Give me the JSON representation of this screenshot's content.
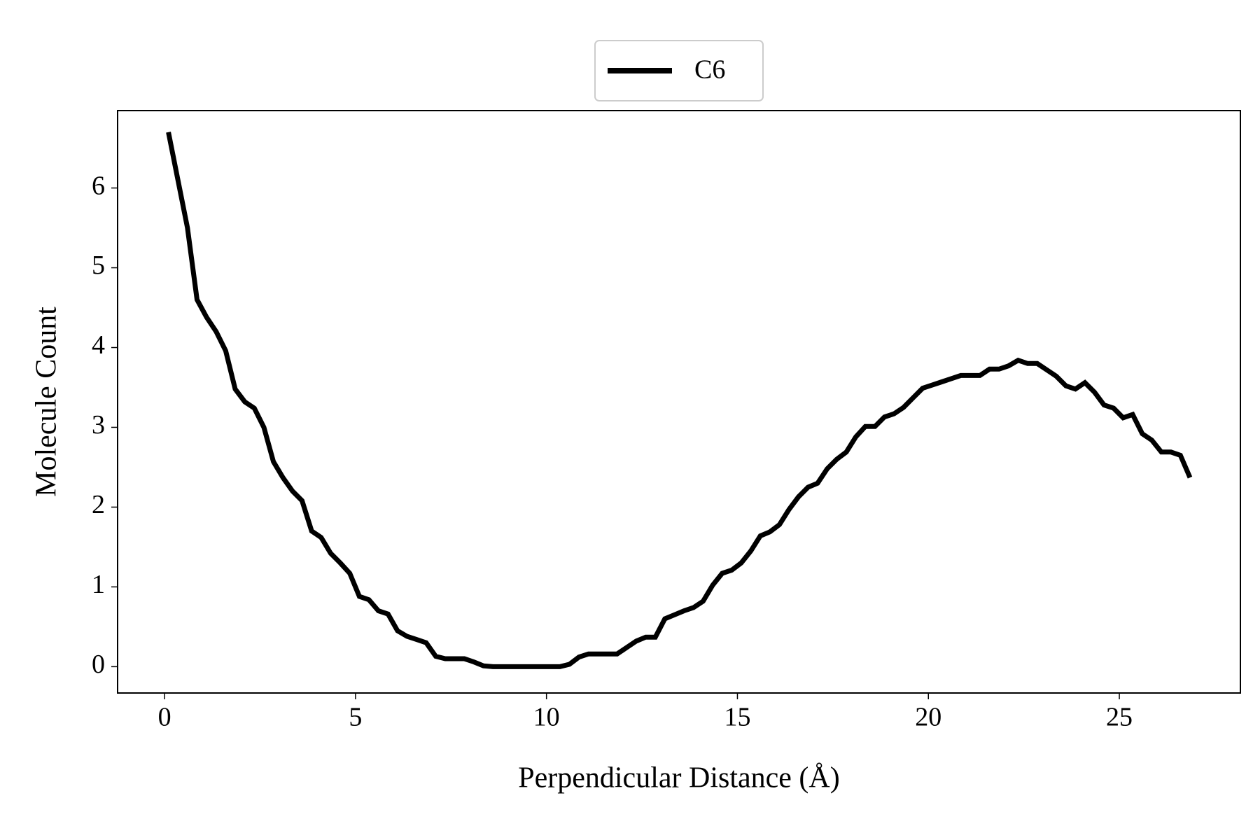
{
  "chart_data": {
    "type": "line",
    "xlabel": "Perpendicular Distance (Å)",
    "ylabel": "Molecule Count",
    "x": [
      0.1,
      0.35,
      0.6,
      0.85,
      1.1,
      1.35,
      1.6,
      1.85,
      2.1,
      2.35,
      2.6,
      2.85,
      3.1,
      3.35,
      3.6,
      3.85,
      4.1,
      4.35,
      4.6,
      4.85,
      5.1,
      5.35,
      5.6,
      5.85,
      6.1,
      6.35,
      6.6,
      6.85,
      7.1,
      7.35,
      7.6,
      7.85,
      8.1,
      8.35,
      8.6,
      8.85,
      9.1,
      9.35,
      9.6,
      9.85,
      10.1,
      10.35,
      10.6,
      10.85,
      11.1,
      11.35,
      11.6,
      11.85,
      12.1,
      12.35,
      12.6,
      12.85,
      13.1,
      13.35,
      13.6,
      13.85,
      14.1,
      14.35,
      14.6,
      14.85,
      15.1,
      15.35,
      15.6,
      15.85,
      16.1,
      16.35,
      16.6,
      16.85,
      17.1,
      17.35,
      17.6,
      17.85,
      18.1,
      18.35,
      18.6,
      18.85,
      19.1,
      19.35,
      19.6,
      19.85,
      20.1,
      20.35,
      20.6,
      20.85,
      21.1,
      21.35,
      21.6,
      21.85,
      22.1,
      22.35,
      22.6,
      22.85,
      23.1,
      23.35,
      23.6,
      23.85,
      24.1,
      24.35,
      24.6,
      24.85,
      25.1,
      25.35,
      25.6,
      25.85,
      26.1,
      26.35,
      26.6,
      26.85
    ],
    "series": [
      {
        "name": "C6",
        "color": "#000000",
        "values": [
          6.7,
          6.1,
          5.5,
          4.6,
          4.38,
          4.2,
          3.96,
          3.48,
          3.32,
          3.24,
          3.0,
          2.57,
          2.37,
          2.2,
          2.08,
          1.7,
          1.62,
          1.42,
          1.3,
          1.17,
          0.88,
          0.84,
          0.7,
          0.66,
          0.45,
          0.38,
          0.34,
          0.3,
          0.13,
          0.1,
          0.1,
          0.1,
          0.06,
          0.01,
          0,
          0,
          0,
          0,
          0,
          0,
          0,
          0,
          0.03,
          0.12,
          0.16,
          0.16,
          0.16,
          0.16,
          0.24,
          0.32,
          0.37,
          0.37,
          0.6,
          0.65,
          0.7,
          0.74,
          0.82,
          1.02,
          1.17,
          1.21,
          1.3,
          1.45,
          1.64,
          1.69,
          1.78,
          1.97,
          2.13,
          2.25,
          2.3,
          2.48,
          2.6,
          2.69,
          2.88,
          3.01,
          3.01,
          3.13,
          3.17,
          3.25,
          3.37,
          3.49,
          3.53,
          3.57,
          3.61,
          3.65,
          3.65,
          3.65,
          3.73,
          3.73,
          3.77,
          3.84,
          3.8,
          3.8,
          3.72,
          3.64,
          3.52,
          3.48,
          3.56,
          3.44,
          3.28,
          3.24,
          3.12,
          3.16,
          2.92,
          2.84,
          2.69,
          2.69,
          2.65,
          2.37
        ]
      }
    ],
    "xlim": [
      -1.23,
      28.17
    ],
    "ylim": [
      -0.33,
      6.97
    ],
    "xticks": [
      0,
      5,
      10,
      15,
      20,
      25
    ],
    "yticks": [
      0,
      1,
      2,
      3,
      4,
      5,
      6
    ],
    "legend": "upper center",
    "grid": false
  }
}
